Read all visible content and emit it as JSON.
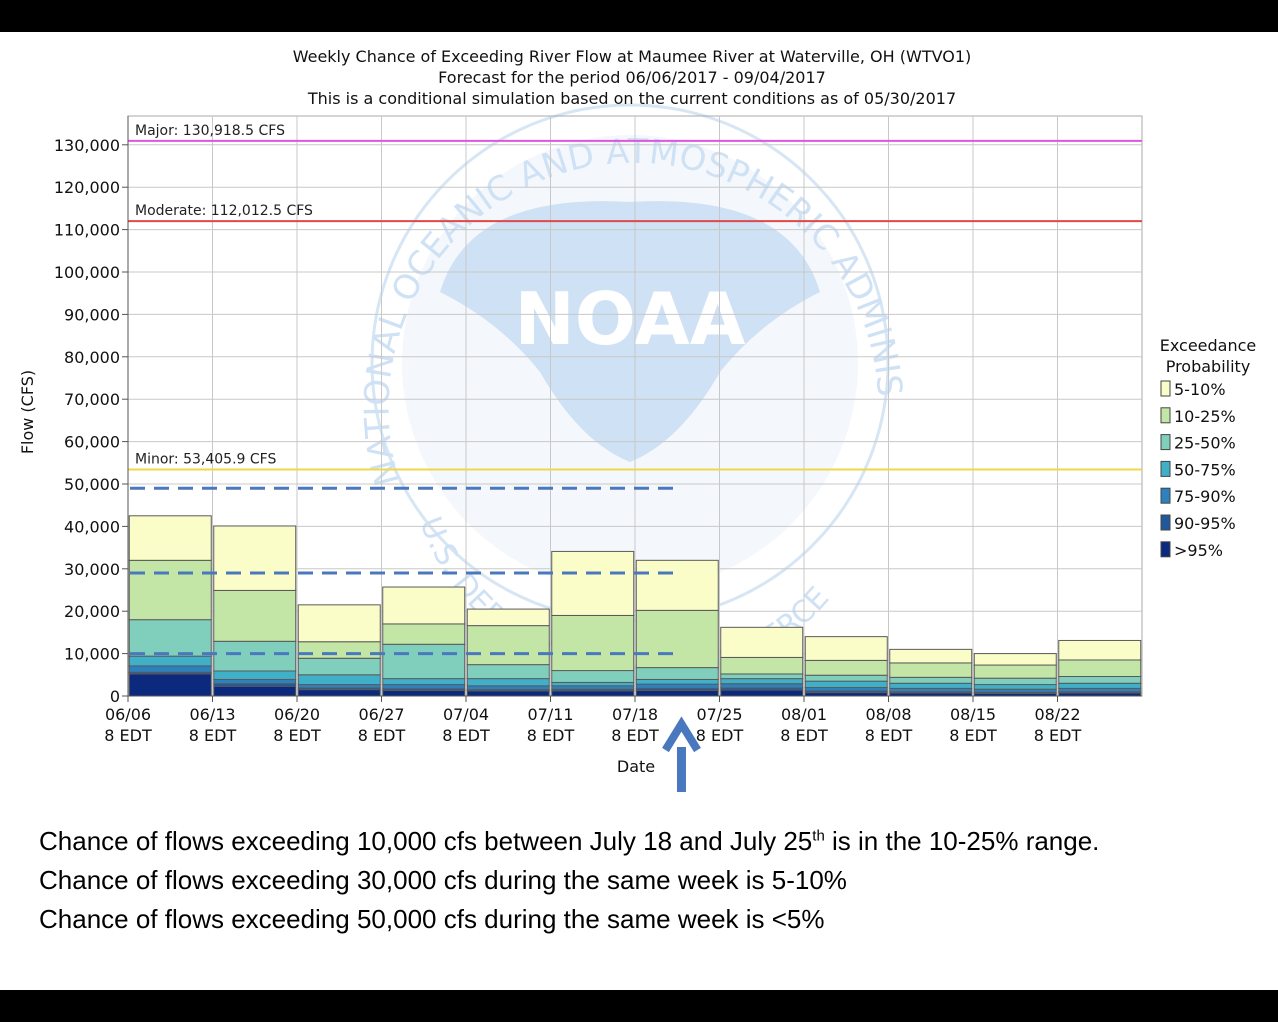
{
  "chart_data": {
    "type": "bar",
    "stacked": true,
    "title": [
      "Weekly Chance of Exceeding River Flow at Maumee River at Waterville, OH (WTVO1)",
      "Forecast for the period 06/06/2017 - 09/04/2017",
      "This is a conditional simulation based on the current conditions as of 05/30/2017"
    ],
    "xlabel": "Date",
    "ylabel": "Flow (CFS)",
    "ylim": [
      0,
      130000
    ],
    "yticks": [
      0,
      10000,
      20000,
      30000,
      40000,
      50000,
      60000,
      70000,
      80000,
      90000,
      100000,
      110000,
      120000,
      130000
    ],
    "ytick_labels": [
      "0",
      "10,000",
      "20,000",
      "30,000",
      "40,000",
      "50,000",
      "60,000",
      "70,000",
      "80,000",
      "90,000",
      "100,000",
      "110,000",
      "120,000",
      "130,000"
    ],
    "grid": true,
    "categories": [
      "06/06",
      "06/13",
      "06/20",
      "06/27",
      "07/04",
      "07/11",
      "07/18",
      "07/25",
      "08/01",
      "08/08",
      "08/15",
      "08/22"
    ],
    "category_sublabel": "8 EDT",
    "series": [
      {
        "name": ">95%",
        "color": "#0b2a7e",
        "values": [
          5200,
          2300,
          1500,
          1300,
          1200,
          1200,
          1300,
          1400,
          800,
          700,
          600,
          700
        ]
      },
      {
        "name": "90-95%",
        "color": "#20589c",
        "values": [
          400,
          600,
          400,
          400,
          300,
          400,
          500,
          500,
          400,
          300,
          300,
          300
        ]
      },
      {
        "name": "75-90%",
        "color": "#2c82be",
        "values": [
          1500,
          1000,
          800,
          1000,
          900,
          800,
          1000,
          1000,
          800,
          800,
          700,
          800
        ]
      },
      {
        "name": "50-75%",
        "color": "#40b0c9",
        "values": [
          2300,
          2000,
          2300,
          1400,
          1700,
          800,
          1100,
          1200,
          1500,
          1200,
          1100,
          1200
        ]
      },
      {
        "name": "25-50%",
        "color": "#80cfbc",
        "values": [
          8600,
          7000,
          3900,
          8100,
          3300,
          2800,
          2800,
          1100,
          1400,
          1400,
          1500,
          1600
        ]
      },
      {
        "name": "10-25%",
        "color": "#c3e6a6",
        "values": [
          14000,
          12000,
          3900,
          4800,
          9200,
          13000,
          13500,
          3900,
          3500,
          3400,
          3100,
          3900
        ]
      },
      {
        "name": "5-10%",
        "color": "#fbfdc8",
        "values": [
          10500,
          15200,
          8700,
          8700,
          3900,
          15100,
          11800,
          7100,
          5600,
          3200,
          2700,
          4600
        ]
      }
    ],
    "thresholds": [
      {
        "label": "Major: 130,918.5 CFS",
        "value": 130918.5,
        "color": "#e055e0"
      },
      {
        "label": "Moderate: 112,012.5 CFS",
        "value": 112012.5,
        "color": "#e04848"
      },
      {
        "label": "Minor: 53,405.9 CFS",
        "value": 53405.9,
        "color": "#ecd84a"
      }
    ],
    "legend": {
      "title": [
        "Exceedance",
        "Probability"
      ],
      "placement": "right"
    },
    "reference_lines": [
      {
        "value": 49000,
        "x_end": "07/18"
      },
      {
        "value": 29000,
        "x_end": "07/18"
      },
      {
        "value": 10000,
        "x_end": "07/18"
      }
    ],
    "reference_color": "#4a78be",
    "arrow_color": "#4a78be",
    "watermark": {
      "agency": "NATIONAL OCEANIC AND ATMOSPHERIC ADMINISTRATION",
      "logo": "NOAA",
      "dept": "U.S. DEPARTMENT OF COMMERCE"
    }
  },
  "caption": {
    "line1_pre": "Chance of flows exceeding 10,000 cfs between July 18 and July 25",
    "line1_sup": "th",
    "line1_post": " is in the 10-25% range.",
    "line2": "Chance of flows exceeding 30,000 cfs during the same week is 5-10%",
    "line3": "Chance of flows exceeding 50,000 cfs during the same week is <5%"
  }
}
